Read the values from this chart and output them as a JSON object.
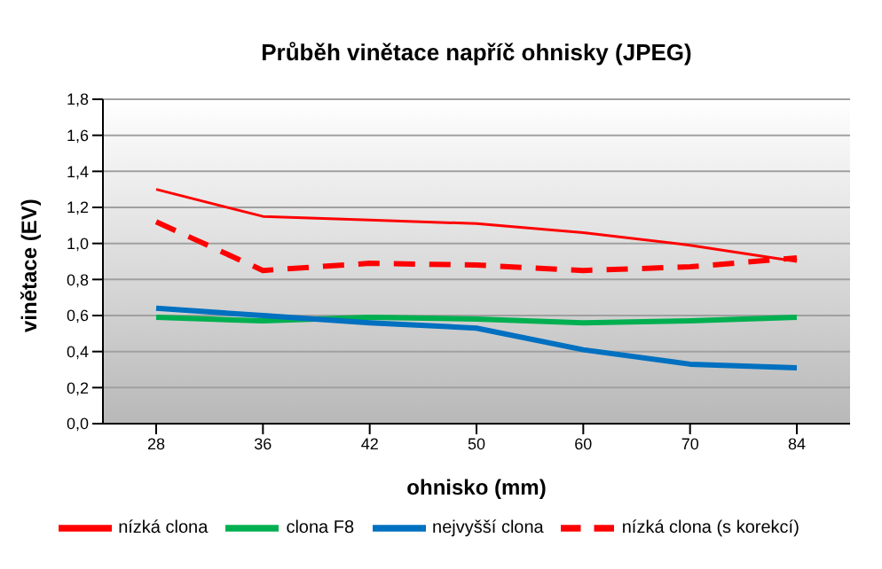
{
  "chart_data": {
    "type": "line",
    "title": "Průběh vinětace napříč ohnisky (JPEG)",
    "xlabel": "ohnisko (mm)",
    "ylabel": "vinětace (EV)",
    "categories": [
      "28",
      "36",
      "42",
      "50",
      "60",
      "70",
      "84"
    ],
    "series": [
      {
        "name": "nízká clona",
        "color": "#ff0000",
        "values": [
          1.3,
          1.15,
          1.13,
          1.11,
          1.06,
          0.99,
          0.9
        ]
      },
      {
        "name": "clona F8",
        "color": "#00b050",
        "values": [
          0.59,
          0.57,
          0.59,
          0.58,
          0.56,
          0.57,
          0.59
        ]
      },
      {
        "name": "nejvyšší clona",
        "color": "#0070c0",
        "values": [
          0.64,
          0.6,
          0.56,
          0.53,
          0.41,
          0.33,
          0.31
        ]
      },
      {
        "name": "nízká clona (s korekcí)",
        "color": "#ff0000",
        "line_style": "dashed",
        "values": [
          1.12,
          0.85,
          0.89,
          0.88,
          0.85,
          0.87,
          0.92
        ]
      }
    ],
    "ylim": [
      0,
      1.8
    ],
    "yticks": [
      {
        "value": 0,
        "label": "0,0"
      },
      {
        "value": 0.2,
        "label": "0,2"
      },
      {
        "value": 0.4,
        "label": "0,4"
      },
      {
        "value": 0.6,
        "label": "0,6"
      },
      {
        "value": 0.8,
        "label": "0,8"
      },
      {
        "value": 1.0,
        "label": "1,0"
      },
      {
        "value": 1.2,
        "label": "1,2"
      },
      {
        "value": 1.4,
        "label": "1,4"
      },
      {
        "value": 1.6,
        "label": "1,6"
      },
      {
        "value": 1.8,
        "label": "1,8"
      }
    ],
    "grid": "y",
    "legend": "bottom",
    "marker": "none",
    "line_style": "solid"
  }
}
